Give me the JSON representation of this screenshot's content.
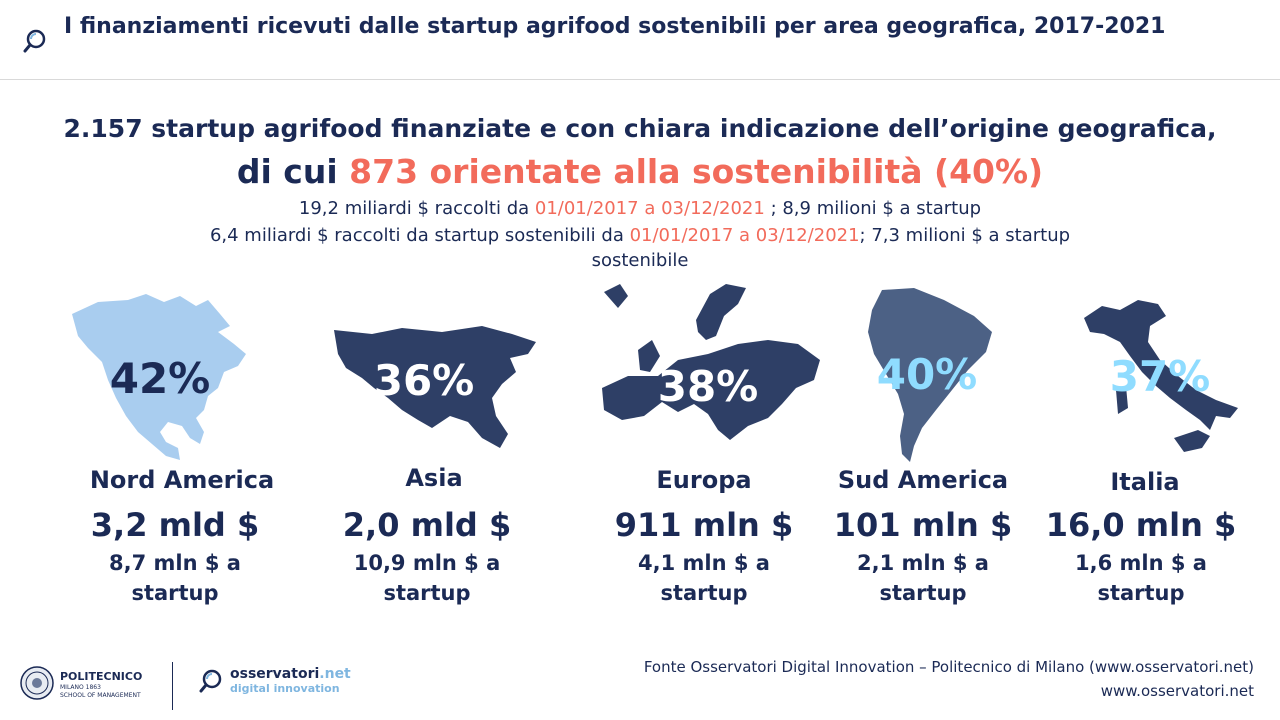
{
  "header": {
    "title": "I finanziamenti ricevuti dalle startup agrifood sostenibili per area geografica, 2017-2021",
    "icon": "observatory-magnifier-icon"
  },
  "headline": {
    "line1": "2.157 startup agrifood finanziate e con chiara indicazione dell’origine geografica,",
    "line2_prefix": "di cui ",
    "line2_highlight": "873 orientate alla sostenibilità (40%)",
    "highlight_color": "#f26b5b"
  },
  "subtitle": {
    "line1_a": "19,2 miliardi $ raccolti da ",
    "line1_date": "01/01/2017 a 03/12/2021",
    "line1_b": " ; 8,9 milioni $ a startup",
    "line2_a": "6,4 miliardi $ raccolti da startup sostenibili da ",
    "line2_date": "01/01/2017 a 03/12/2021",
    "line2_b": "; 7,3 milioni $ a startup",
    "line3": "sostenibile"
  },
  "regions": [
    {
      "name": "Nord America",
      "percent": "42%",
      "amount": "3,2 mld $",
      "per_startup_1": "8,7 mln $ a",
      "per_startup_2": "startup",
      "map_color": "#a9cdef",
      "percent_color": "#1b2a55"
    },
    {
      "name": "Asia",
      "percent": "36%",
      "amount": "2,0 mld $",
      "per_startup_1": "10,9 mln $ a",
      "per_startup_2": "startup",
      "map_color": "#2e3f66",
      "percent_color": "#ffffff"
    },
    {
      "name": "Europa",
      "percent": "38%",
      "amount": "911 mln $",
      "per_startup_1": "4,1 mln $ a",
      "per_startup_2": "startup",
      "map_color": "#2e3f66",
      "percent_color": "#ffffff"
    },
    {
      "name": "Sud America",
      "percent": "40%",
      "amount": "101 mln $",
      "per_startup_1": "2,1 mln $ a",
      "per_startup_2": "startup",
      "map_color": "#4c6185",
      "percent_color": "#8fdcff"
    },
    {
      "name": "Italia",
      "percent": "37%",
      "amount": "16,0 mln $",
      "per_startup_1": "1,6 mln $ a",
      "per_startup_2": "startup",
      "map_color": "#2e3f66",
      "percent_color": "#8fdcff"
    }
  ],
  "footer": {
    "poli_name": "POLITECNICO",
    "poli_sub": "MILANO 1863",
    "poli_school": "SCHOOL OF MANAGEMENT",
    "oss_name": "osservatori",
    "oss_net": ".net",
    "oss_tagline": "digital innovation",
    "source": "Fonte Osservatori Digital Innovation – Politecnico di Milano (www.osservatori.net)",
    "website": "www.osservatori.net"
  }
}
